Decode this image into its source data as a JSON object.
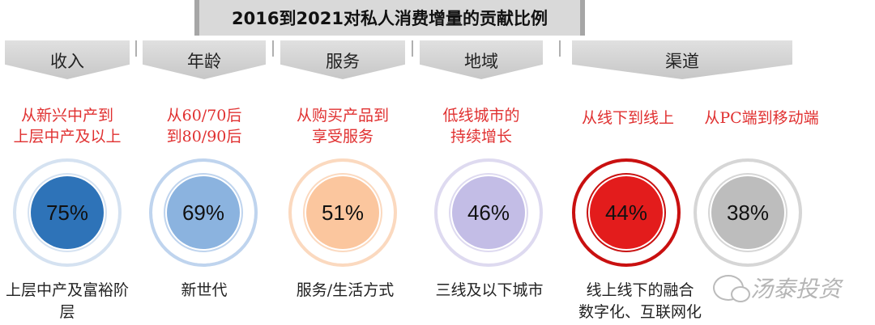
{
  "title": "2016到2021对私人消费增量的贡献比例",
  "groups": [
    {
      "header": "收入",
      "desc": "从新兴中产到\n上层中产及以上",
      "value": "75%",
      "bottom": "上层中产及富裕阶层",
      "ring": "#d5e2f1",
      "fill": "#2e73b8"
    },
    {
      "header": "年龄",
      "desc": "从60/70后\n到80/90后",
      "value": "69%",
      "bottom": "新世代",
      "ring": "#bfd4ee",
      "fill": "#8bb3df"
    },
    {
      "header": "服务",
      "desc": "从购买产品到\n享受服务",
      "value": "51%",
      "bottom": "服务/生活方式",
      "ring": "#fbd9bf",
      "fill": "#fbc69e"
    },
    {
      "header": "地域",
      "desc": "低线城市的\n持续增长",
      "value": "46%",
      "bottom": "三线及以下城市",
      "ring": "#dedaf0",
      "fill": "#c3bde6"
    }
  ],
  "channel": {
    "header": "渠道",
    "items": [
      {
        "desc": "从线下到线上",
        "value": "44%",
        "ring": "#c91010",
        "fill": "#e31c1c"
      },
      {
        "desc": "从PC端到移动端",
        "value": "38%",
        "ring": "#d6d6d6",
        "fill": "#bdbdbd"
      }
    ],
    "bottom": "线上线下的融合\n数字化、互联网化"
  },
  "watermark": "汤泰投资"
}
